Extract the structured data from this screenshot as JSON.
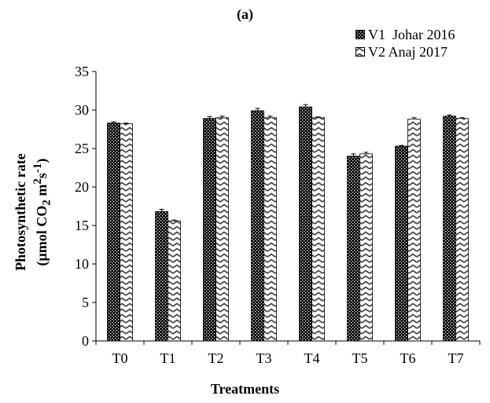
{
  "panel_label": "(a)",
  "colors": {
    "series1_dot": "#000000",
    "series2_zigzag": "#4d4d4d",
    "axis": "#000000"
  },
  "chart_data": {
    "type": "bar",
    "title": "",
    "xlabel": "Treatments",
    "ylabel_line1": "Photosynthetic rate",
    "ylabel_line2_parts": [
      "(µmol CO",
      "2",
      " m",
      "2",
      "s",
      "-1",
      ")"
    ],
    "categories": [
      "T0",
      "T1",
      "T2",
      "T3",
      "T4",
      "T5",
      "T6",
      "T7"
    ],
    "ylim": [
      0,
      35
    ],
    "yticks": [
      0,
      5,
      10,
      15,
      20,
      25,
      30,
      35
    ],
    "grid": false,
    "legend_position": "top-right",
    "series": [
      {
        "name": "V1  Johar 2016",
        "pattern": "dots",
        "values": [
          28.3,
          16.8,
          28.9,
          29.9,
          30.4,
          24.0,
          25.3,
          29.2
        ],
        "errors": [
          0.15,
          0.3,
          0.25,
          0.3,
          0.3,
          0.3,
          0.1,
          0.15
        ]
      },
      {
        "name": "V2 Anaj 2017",
        "pattern": "zigzag",
        "values": [
          28.2,
          15.6,
          29.0,
          29.0,
          29.0,
          24.3,
          28.8,
          28.9
        ],
        "errors": [
          0.1,
          0.1,
          0.2,
          0.2,
          0.1,
          0.2,
          0.2,
          0.1
        ]
      }
    ]
  }
}
